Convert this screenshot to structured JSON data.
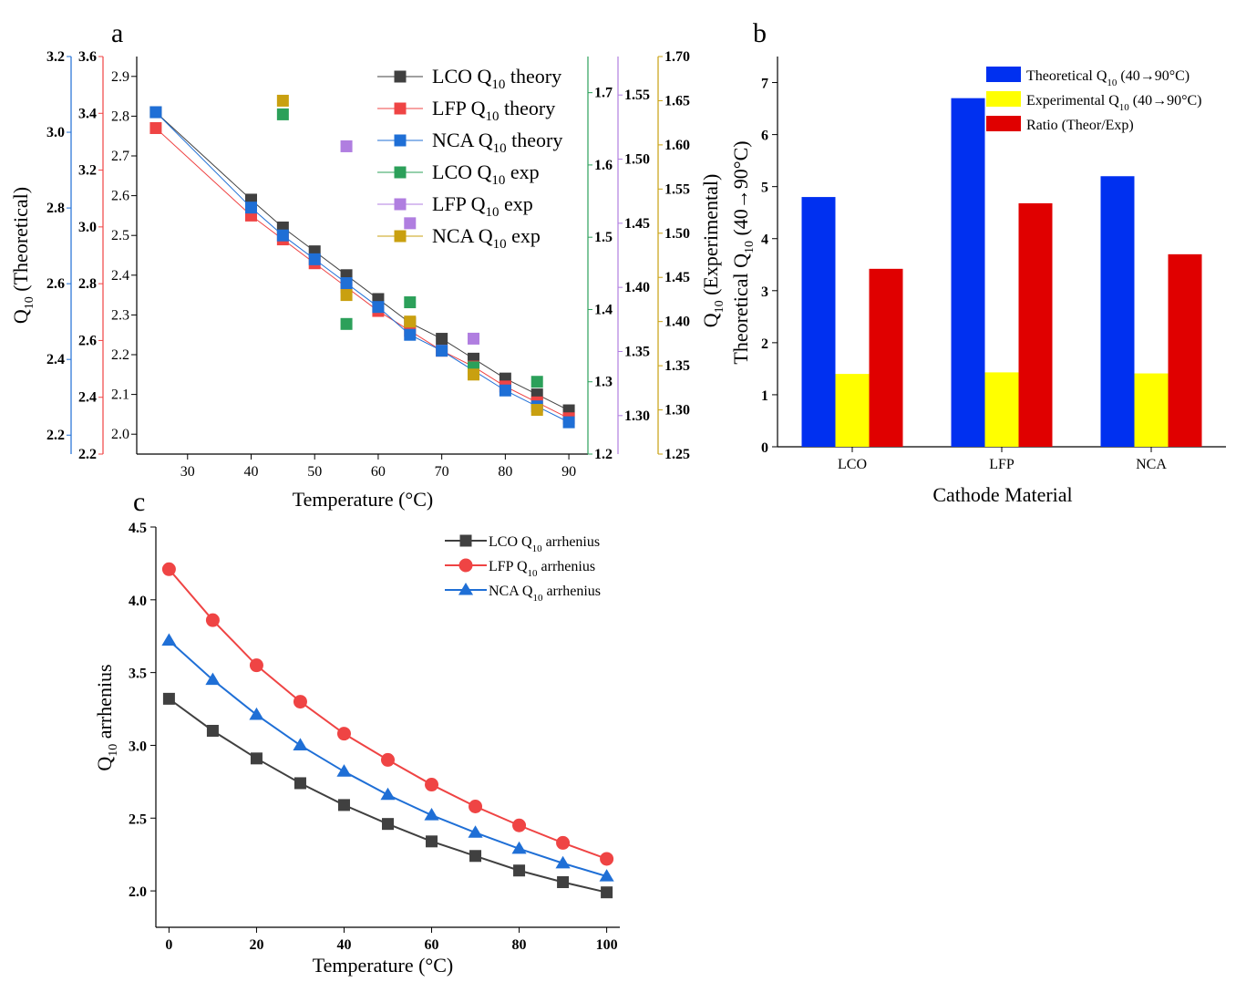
{
  "colors": {
    "lco": "#404040",
    "lfp": "#ef4444",
    "nca": "#1f6fd6",
    "lco_exp": "#2ca05a",
    "lfp_exp": "#b07ee0",
    "nca_exp": "#c9a010",
    "bar_theor": "#0030f0",
    "bar_exp": "#ffff00",
    "bar_ratio": "#e00000"
  },
  "panel_a": {
    "letter": "a",
    "xlabel": "Temperature (°C)",
    "ylabel_sub": "10",
    "ylabel_main_pre": "Q",
    "ylabel_main_post": " (Theoretical)",
    "ylabel_right_post": " (Experimental)",
    "legend": [
      {
        "pre": "LCO Q",
        "post": "  theory"
      },
      {
        "pre": "LFP  Q",
        "post": "  theory"
      },
      {
        "pre": "NCA Q",
        "post": " theory"
      },
      {
        "pre": "LCO Q",
        "post": "  exp"
      },
      {
        "pre": "LFP  Q",
        "post": "  exp"
      },
      {
        "pre": "NCA Q",
        "post": " exp"
      }
    ],
    "sub10": "10"
  },
  "panel_b": {
    "letter": "b",
    "xlabel": "Cathode Material",
    "ylabel_pre": "Theoretical Q",
    "ylabel_post": " (40→90°C)",
    "legend": [
      {
        "pre": "Theoretical Q",
        "post": " (40→90°C)"
      },
      {
        "pre": "Experimental Q",
        "post": " (40→90°C)"
      },
      {
        "pre": "Ratio (Theor/Exp)",
        "post": ""
      }
    ]
  },
  "panel_c": {
    "letter": "c",
    "xlabel": "Temperature (°C)",
    "ylabel_pre": "Q",
    "ylabel_post": " arrhenius",
    "legend": [
      {
        "pre": "LCO Q",
        "post": " arrhenius"
      },
      {
        "pre": "LFP Q",
        "post": " arrhenius"
      },
      {
        "pre": "NCA Q",
        "post": " arrhenius"
      }
    ]
  },
  "chart_data": [
    {
      "type": "line",
      "panel": "a",
      "xlabel": "Temperature (°C)",
      "xlim": [
        22,
        93
      ],
      "x_ticks": [
        30,
        40,
        50,
        60,
        70,
        80,
        90
      ],
      "axes": {
        "main": {
          "ylim": [
            1.95,
            2.95
          ],
          "ticks": [
            2.0,
            2.1,
            2.2,
            2.3,
            2.4,
            2.5,
            2.6,
            2.7,
            2.8,
            2.9
          ],
          "color": "#000000"
        },
        "lfp_axis": {
          "ylim": [
            2.2,
            3.6
          ],
          "ticks": [
            2.2,
            2.4,
            2.6,
            2.8,
            3.0,
            3.2,
            3.4,
            3.6
          ],
          "color": "#ef4444"
        },
        "nca_axis": {
          "ylim": [
            2.15,
            3.2
          ],
          "ticks": [
            2.2,
            2.4,
            2.6,
            2.8,
            3.0,
            3.2
          ],
          "color": "#1f6fd6"
        },
        "lco_exp_axis": {
          "ylim": [
            1.2,
            1.75
          ],
          "ticks": [
            1.2,
            1.3,
            1.4,
            1.5,
            1.6,
            1.7
          ],
          "color": "#2ca05a"
        },
        "lfp_exp_axis": {
          "ylim": [
            1.27,
            1.58
          ],
          "ticks": [
            1.3,
            1.35,
            1.4,
            1.45,
            1.5,
            1.55
          ],
          "color": "#b07ee0"
        },
        "nca_exp_axis": {
          "ylim": [
            1.25,
            1.7
          ],
          "ticks": [
            1.25,
            1.3,
            1.35,
            1.4,
            1.45,
            1.5,
            1.55,
            1.6,
            1.65,
            1.7
          ],
          "color": "#c9a010"
        }
      },
      "series": [
        {
          "name": "LCO Q10 theory",
          "axis": "main",
          "x": [
            25,
            40,
            45,
            50,
            55,
            60,
            65,
            70,
            75,
            80,
            85,
            90
          ],
          "y": [
            2.81,
            2.59,
            2.52,
            2.46,
            2.4,
            2.34,
            2.28,
            2.24,
            2.19,
            2.14,
            2.1,
            2.06
          ]
        },
        {
          "name": "LFP Q10 theory",
          "axis": "main",
          "x": [
            25,
            40,
            45,
            50,
            55,
            60,
            65,
            70,
            75,
            80,
            85,
            90
          ],
          "y": [
            2.77,
            2.55,
            2.49,
            2.43,
            2.37,
            2.31,
            2.26,
            2.21,
            2.17,
            2.12,
            2.08,
            2.04
          ]
        },
        {
          "name": "NCA Q10 theory",
          "axis": "main",
          "x": [
            25,
            40,
            45,
            50,
            55,
            60,
            65,
            70,
            75,
            80,
            85,
            90
          ],
          "y": [
            2.81,
            2.57,
            2.5,
            2.44,
            2.38,
            2.32,
            2.25,
            2.21,
            2.16,
            2.11,
            2.07,
            2.03
          ]
        },
        {
          "name": "LCO Q10 exp",
          "axis": "lco_exp_axis",
          "x": [
            45,
            55,
            65,
            75,
            85
          ],
          "y": [
            1.67,
            1.38,
            1.41,
            1.32,
            1.3
          ]
        },
        {
          "name": "LFP Q10 exp",
          "axis": "lfp_exp_axis",
          "x": [
            55,
            65,
            75
          ],
          "y": [
            1.51,
            1.45,
            1.36
          ]
        },
        {
          "name": "NCA Q10 exp",
          "axis": "nca_exp_axis",
          "x": [
            45,
            55,
            65,
            75,
            85
          ],
          "y": [
            1.65,
            1.43,
            1.4,
            1.34,
            1.3
          ]
        }
      ]
    },
    {
      "type": "bar",
      "panel": "b",
      "categories": [
        "LCO",
        "LFP",
        "NCA"
      ],
      "xlabel": "Cathode Material",
      "ylim": [
        0,
        7.5
      ],
      "y_ticks": [
        0,
        1,
        2,
        3,
        4,
        5,
        6,
        7
      ],
      "series": [
        {
          "name": "Theoretical Q10 (40→90°C)",
          "values": [
            4.8,
            6.7,
            5.2
          ]
        },
        {
          "name": "Experimental Q10 (40→90°C)",
          "values": [
            1.4,
            1.43,
            1.41
          ]
        },
        {
          "name": "Ratio (Theor/Exp)",
          "values": [
            3.42,
            4.68,
            3.7
          ]
        }
      ]
    },
    {
      "type": "line",
      "panel": "c",
      "xlabel": "Temperature (°C)",
      "xlim": [
        -3,
        103
      ],
      "ylim": [
        1.75,
        4.5
      ],
      "x_ticks": [
        0,
        20,
        40,
        60,
        80,
        100
      ],
      "y_ticks": [
        2.0,
        2.5,
        3.0,
        3.5,
        4.0,
        4.5
      ],
      "x": [
        0,
        10,
        20,
        30,
        40,
        50,
        60,
        70,
        80,
        90,
        100
      ],
      "series": [
        {
          "name": "LCO Q10 arrhenius",
          "marker": "square",
          "values": [
            3.32,
            3.1,
            2.91,
            2.74,
            2.59,
            2.46,
            2.34,
            2.24,
            2.14,
            2.06,
            1.99
          ]
        },
        {
          "name": "LFP Q10 arrhenius",
          "marker": "circle",
          "values": [
            4.21,
            3.86,
            3.55,
            3.3,
            3.08,
            2.9,
            2.73,
            2.58,
            2.45,
            2.33,
            2.22
          ]
        },
        {
          "name": "NCA Q10 arrhenius",
          "marker": "triangle",
          "values": [
            3.72,
            3.45,
            3.21,
            3.0,
            2.82,
            2.66,
            2.52,
            2.4,
            2.29,
            2.19,
            2.1
          ]
        }
      ]
    }
  ]
}
